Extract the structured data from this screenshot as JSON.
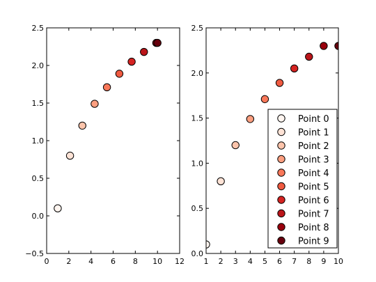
{
  "chart_data": [
    {
      "type": "scatter",
      "xlim": [
        0,
        12
      ],
      "ylim": [
        -0.5,
        2.5
      ],
      "xticks": [
        "0",
        "2",
        "4",
        "6",
        "8",
        "10",
        "12"
      ],
      "yticks": [
        "−0.5",
        "0.0",
        "0.5",
        "1.0",
        "1.5",
        "2.0",
        "2.5"
      ],
      "xtick_values": [
        0,
        2,
        4,
        6,
        8,
        10,
        12
      ],
      "ytick_values": [
        -0.5,
        0,
        0.5,
        1,
        1.5,
        2,
        2.5
      ],
      "series": [
        {
          "name": "Point 0",
          "x": 1.0,
          "y": 0.1,
          "color": "#fff5f0"
        },
        {
          "name": "Point 1",
          "x": 2.11,
          "y": 0.8,
          "color": "#fee3d6"
        },
        {
          "name": "Point 2",
          "x": 3.22,
          "y": 1.2,
          "color": "#fcc4ab"
        },
        {
          "name": "Point 3",
          "x": 4.33,
          "y": 1.49,
          "color": "#fc9f80"
        },
        {
          "name": "Point 4",
          "x": 5.44,
          "y": 1.71,
          "color": "#f9785a"
        },
        {
          "name": "Point 5",
          "x": 6.56,
          "y": 1.89,
          "color": "#ef5a41"
        },
        {
          "name": "Point 6",
          "x": 7.67,
          "y": 2.05,
          "color": "#d52321"
        },
        {
          "name": "Point 7",
          "x": 8.78,
          "y": 2.18,
          "color": "#bb151a"
        },
        {
          "name": "Point 8",
          "x": 9.89,
          "y": 2.3,
          "color": "#99000d"
        },
        {
          "name": "Point 9",
          "x": 10.0,
          "y": 2.3,
          "color": "#67000d"
        }
      ],
      "legend": "none"
    },
    {
      "type": "scatter",
      "xlim": [
        1,
        10
      ],
      "ylim": [
        0,
        2.5
      ],
      "xticks": [
        "1",
        "2",
        "3",
        "4",
        "5",
        "6",
        "7",
        "8",
        "9",
        "10"
      ],
      "yticks": [
        "0.0",
        "0.5",
        "1.0",
        "1.5",
        "2.0",
        "2.5"
      ],
      "xtick_values": [
        1,
        2,
        3,
        4,
        5,
        6,
        7,
        8,
        9,
        10
      ],
      "ytick_values": [
        0,
        0.5,
        1,
        1.5,
        2,
        2.5
      ],
      "series": [
        {
          "name": "Point 0",
          "x": 1.0,
          "y": 0.1,
          "color": "#fff5f0"
        },
        {
          "name": "Point 1",
          "x": 2.0,
          "y": 0.8,
          "color": "#fee3d6"
        },
        {
          "name": "Point 2",
          "x": 3.0,
          "y": 1.2,
          "color": "#fcc4ab"
        },
        {
          "name": "Point 3",
          "x": 4.0,
          "y": 1.49,
          "color": "#fc9f80"
        },
        {
          "name": "Point 4",
          "x": 5.0,
          "y": 1.71,
          "color": "#f9785a"
        },
        {
          "name": "Point 5",
          "x": 6.0,
          "y": 1.89,
          "color": "#ef5a41"
        },
        {
          "name": "Point 6",
          "x": 7.0,
          "y": 2.05,
          "color": "#d52321"
        },
        {
          "name": "Point 7",
          "x": 8.0,
          "y": 2.18,
          "color": "#bb151a"
        },
        {
          "name": "Point 8",
          "x": 9.0,
          "y": 2.3,
          "color": "#99000d"
        },
        {
          "name": "Point 9",
          "x": 10.0,
          "y": 2.3,
          "color": "#67000d"
        }
      ],
      "legend": "lower-right"
    }
  ]
}
